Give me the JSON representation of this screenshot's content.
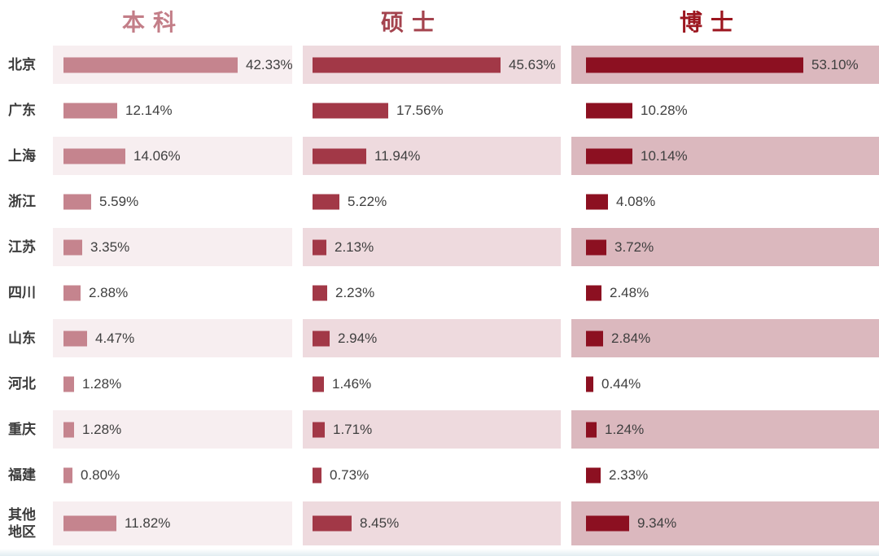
{
  "chart_data": {
    "type": "bar",
    "orientation": "horizontal",
    "title": "",
    "xlabel": "",
    "ylabel": "",
    "value_suffix": "%",
    "grid": false,
    "legend_position": "top-column-headers",
    "row_striping": "alternate rows tinted, tint darkens per column",
    "categories": [
      "北京",
      "广东",
      "上海",
      "浙江",
      "江苏",
      "四川",
      "山东",
      "河北",
      "重庆",
      "福建",
      "其他地区"
    ],
    "series": [
      {
        "name": "本科",
        "values": [
          42.33,
          12.14,
          14.06,
          5.59,
          3.35,
          2.88,
          4.47,
          1.28,
          1.28,
          0.8,
          11.82
        ],
        "labels": [
          "42.33%",
          "12.14%",
          "14.06%",
          "5.59%",
          "3.35%",
          "2.88%",
          "4.47%",
          "1.28%",
          "1.28%",
          "0.80%",
          "11.82%"
        ],
        "bar_color": "#c5848e",
        "band_color": "#f7eef0",
        "header_color": "#c37e88"
      },
      {
        "name": "硕士",
        "values": [
          45.63,
          17.56,
          11.94,
          5.22,
          2.13,
          2.23,
          2.94,
          1.46,
          1.71,
          0.73,
          8.45
        ],
        "labels": [
          "45.63%",
          "17.56%",
          "11.94%",
          "5.22%",
          "2.13%",
          "2.23%",
          "2.94%",
          "1.46%",
          "1.71%",
          "0.73%",
          "8.45%"
        ],
        "bar_color": "#a23847",
        "band_color": "#eedade",
        "header_color": "#a4434e"
      },
      {
        "name": "博士",
        "values": [
          53.1,
          10.28,
          10.14,
          4.08,
          3.72,
          2.48,
          2.84,
          0.44,
          1.24,
          2.33,
          9.34
        ],
        "labels": [
          "53.10%",
          "10.28%",
          "10.14%",
          "4.08%",
          "3.72%",
          "2.48%",
          "2.84%",
          "0.44%",
          "1.24%",
          "2.33%",
          "9.34%"
        ],
        "bar_color": "#8c1021",
        "band_color": "#dbb8be",
        "header_color": "#9c161f"
      }
    ],
    "xlim": [
      0,
      60
    ]
  }
}
